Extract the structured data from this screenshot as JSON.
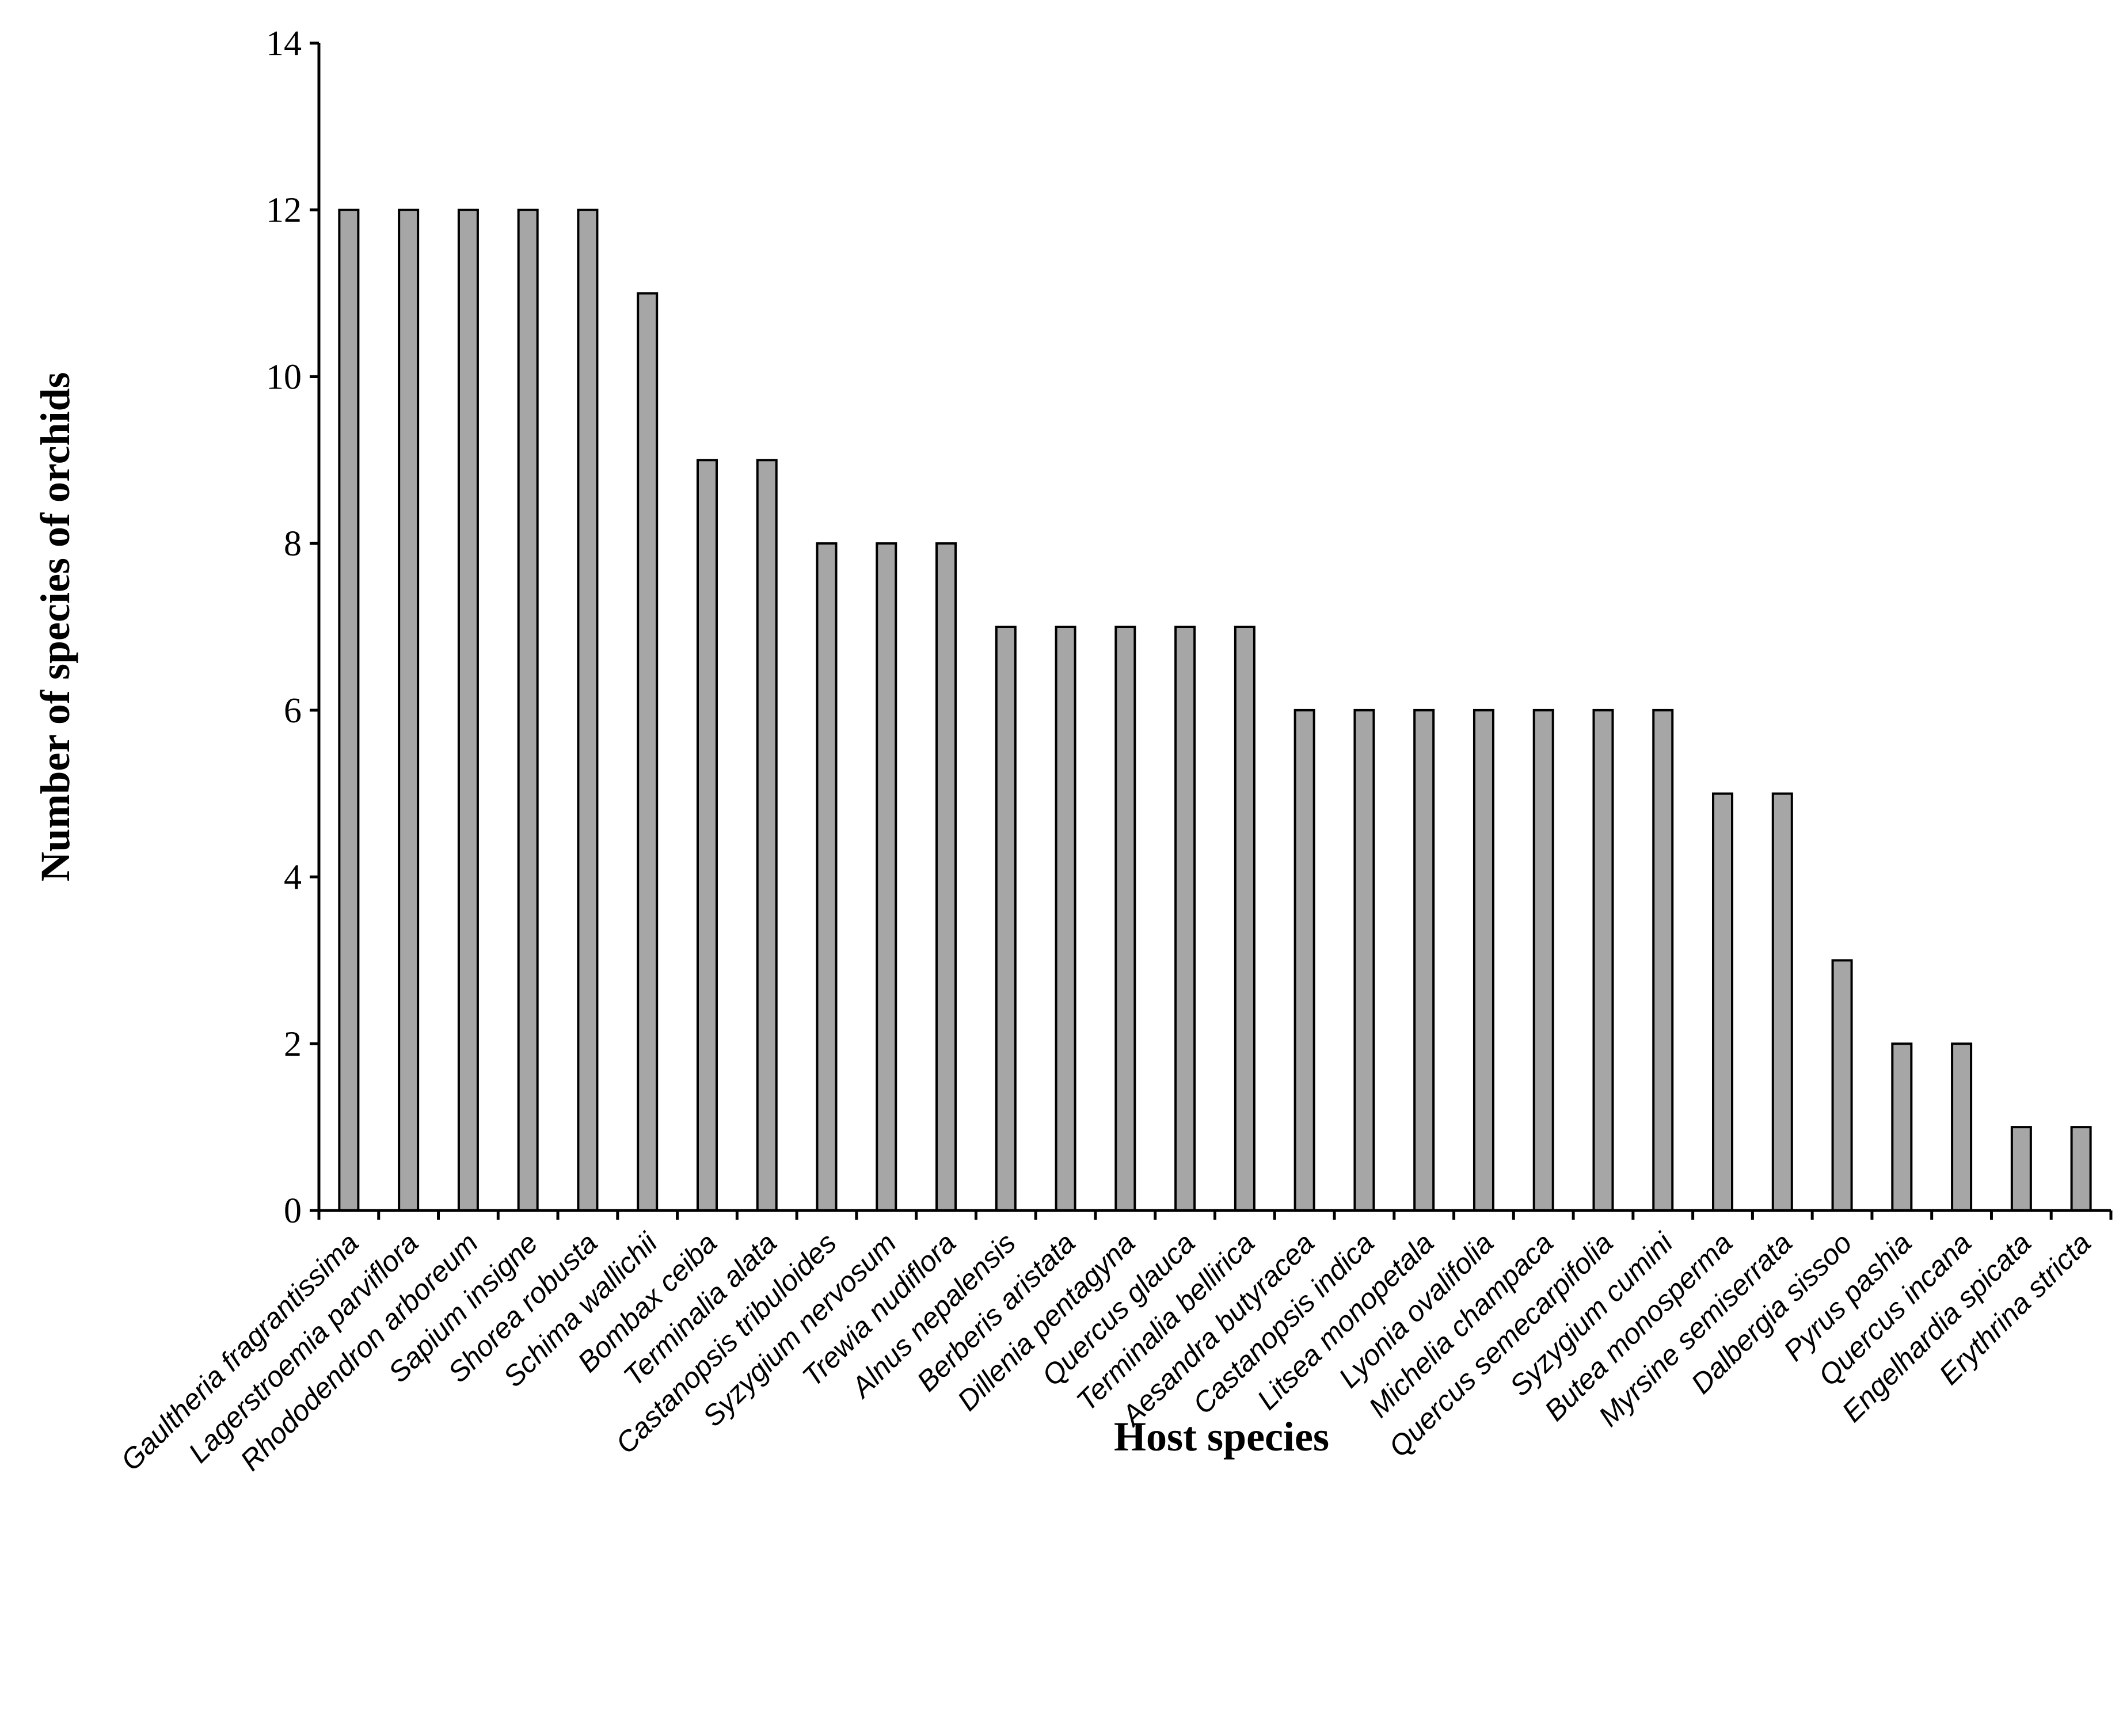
{
  "chart_data": {
    "type": "bar",
    "title": "",
    "xlabel": "Host species",
    "ylabel": "Number of species of orchids",
    "ylim": [
      0,
      14
    ],
    "yticks": [
      0,
      2,
      4,
      6,
      8,
      10,
      12,
      14
    ],
    "grid": false,
    "legend": "none",
    "bar_color": "#a6a6a6",
    "bar_edge_color": "#000000",
    "categories": [
      "Gaultheria fragrantissima",
      "Lagerstroemia parviflora",
      "Rhododendron arboreum",
      "Sapium insigne",
      "Shorea robusta",
      "Schima wallichii",
      "Bombax ceiba",
      "Terminalia alata",
      "Castanopsis tribuloides",
      "Syzygium nervosum",
      "Trewia nudiflora",
      "Alnus nepalensis",
      "Berberis aristata",
      "Dillenia pentagyna",
      "Quercus glauca",
      "Terminalia bellirica",
      "Aesandra butyracea",
      "Castanopsis indica",
      "Litsea monopetala",
      "Lyonia ovalifolia",
      "Michelia champaca",
      "Quercus semecarpifolia",
      "Syzygium cumini",
      "Butea monosperma",
      "Myrsine semiserrata",
      "Dalbergia sissoo",
      "Pyrus pashia",
      "Quercus incana",
      "Engelhardia spicata",
      "Erythrina stricta"
    ],
    "values": [
      12,
      12,
      12,
      12,
      12,
      11,
      9,
      9,
      8,
      8,
      8,
      7,
      7,
      7,
      7,
      7,
      6,
      6,
      6,
      6,
      6,
      6,
      6,
      5,
      5,
      3,
      2,
      2,
      1,
      1
    ]
  }
}
